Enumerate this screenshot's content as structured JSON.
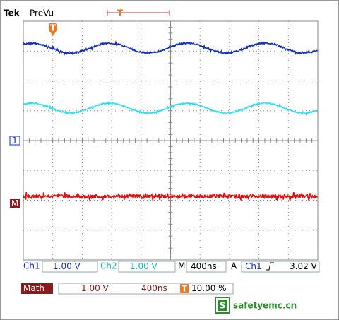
{
  "header": {
    "brand": "Tek",
    "mode": "PreVu",
    "trigger_marker": "T"
  },
  "markers": {
    "trigger_position": "T",
    "ch1": "1",
    "math": "M"
  },
  "status": {
    "ch1_label": "Ch1",
    "ch1_scale": "1.00 V",
    "ch2_label": "Ch2",
    "ch2_scale": "1.00 V",
    "time_label": "M",
    "time_scale": "400ns",
    "trigger_mode": "A",
    "trigger_source": "Ch1",
    "trigger_level": "3.02 V"
  },
  "math": {
    "label": "Math",
    "scale": "1.00 V",
    "time_scale": "400ns",
    "trigger_marker": "T",
    "position": "10.00 %"
  },
  "watermark": {
    "logo": "S",
    "text": "safetyemc.cn"
  }
}
